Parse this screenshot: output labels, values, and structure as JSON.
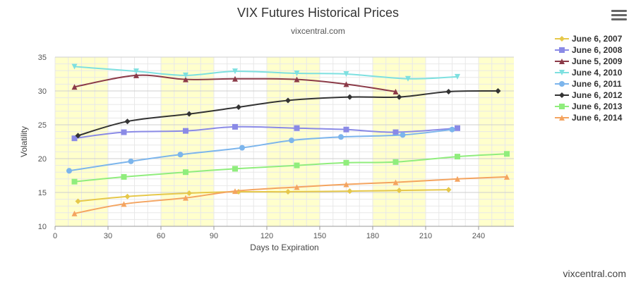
{
  "header": {
    "title": "VIX Futures Historical Prices",
    "subtitle": "vixcentral.com"
  },
  "credit": "vixcentral.com",
  "menu_icon": "hamburger-menu-icon",
  "chart_data": {
    "type": "line",
    "xlabel": "Days to Expiration",
    "ylabel": "Volatility",
    "xlim": [
      0,
      260
    ],
    "ylim": [
      10,
      35
    ],
    "x_ticks": [
      0,
      30,
      60,
      90,
      120,
      150,
      180,
      210,
      240
    ],
    "y_ticks": [
      10,
      15,
      20,
      25,
      30,
      35
    ],
    "grid": true,
    "legend_position": "right",
    "band_color": "#ffffcc",
    "series": [
      {
        "name": "June 6, 2007",
        "color": "#e6c84a",
        "marker": "diamond",
        "x": [
          13,
          41,
          76,
          104,
          132,
          167,
          195,
          223
        ],
        "y": [
          13.7,
          14.4,
          14.9,
          15.1,
          15.1,
          15.2,
          15.3,
          15.4
        ]
      },
      {
        "name": "June 6, 2008",
        "color": "#8a8ae6",
        "marker": "square",
        "x": [
          11,
          39,
          74,
          102,
          137,
          165,
          193,
          228
        ],
        "y": [
          23.0,
          23.9,
          24.1,
          24.7,
          24.5,
          24.3,
          23.9,
          24.5
        ]
      },
      {
        "name": "June 5, 2009",
        "color": "#8b3a48",
        "marker": "triangle",
        "x": [
          11,
          46,
          74,
          102,
          137,
          165,
          193
        ],
        "y": [
          30.6,
          32.3,
          31.7,
          31.8,
          31.7,
          31.0,
          29.9
        ]
      },
      {
        "name": "June 4, 2010",
        "color": "#7ee0e0",
        "marker": "triangle-down",
        "x": [
          11,
          46,
          74,
          102,
          137,
          165,
          200,
          228
        ],
        "y": [
          33.6,
          32.9,
          32.3,
          32.9,
          32.6,
          32.5,
          31.8,
          32.1
        ]
      },
      {
        "name": "June 6, 2011",
        "color": "#7cb5ec",
        "marker": "circle",
        "x": [
          8,
          43,
          71,
          106,
          134,
          162,
          197,
          225
        ],
        "y": [
          18.2,
          19.6,
          20.6,
          21.6,
          22.7,
          23.2,
          23.5,
          24.3
        ]
      },
      {
        "name": "June 6, 2012",
        "color": "#333333",
        "marker": "diamond",
        "x": [
          13,
          41,
          76,
          104,
          132,
          167,
          195,
          223,
          251
        ],
        "y": [
          23.4,
          25.5,
          26.6,
          27.6,
          28.6,
          29.1,
          29.1,
          29.9,
          30.0
        ]
      },
      {
        "name": "June 6, 2013",
        "color": "#90ed7d",
        "marker": "square",
        "x": [
          11,
          39,
          74,
          102,
          137,
          165,
          193,
          228,
          256
        ],
        "y": [
          16.6,
          17.3,
          18.0,
          18.5,
          19.0,
          19.4,
          19.5,
          20.3,
          20.7
        ]
      },
      {
        "name": "June 6, 2014",
        "color": "#f4a460",
        "marker": "triangle",
        "x": [
          11,
          39,
          74,
          102,
          137,
          165,
          193,
          228,
          256
        ],
        "y": [
          11.9,
          13.3,
          14.2,
          15.2,
          15.8,
          16.2,
          16.5,
          17.0,
          17.3
        ]
      }
    ]
  }
}
